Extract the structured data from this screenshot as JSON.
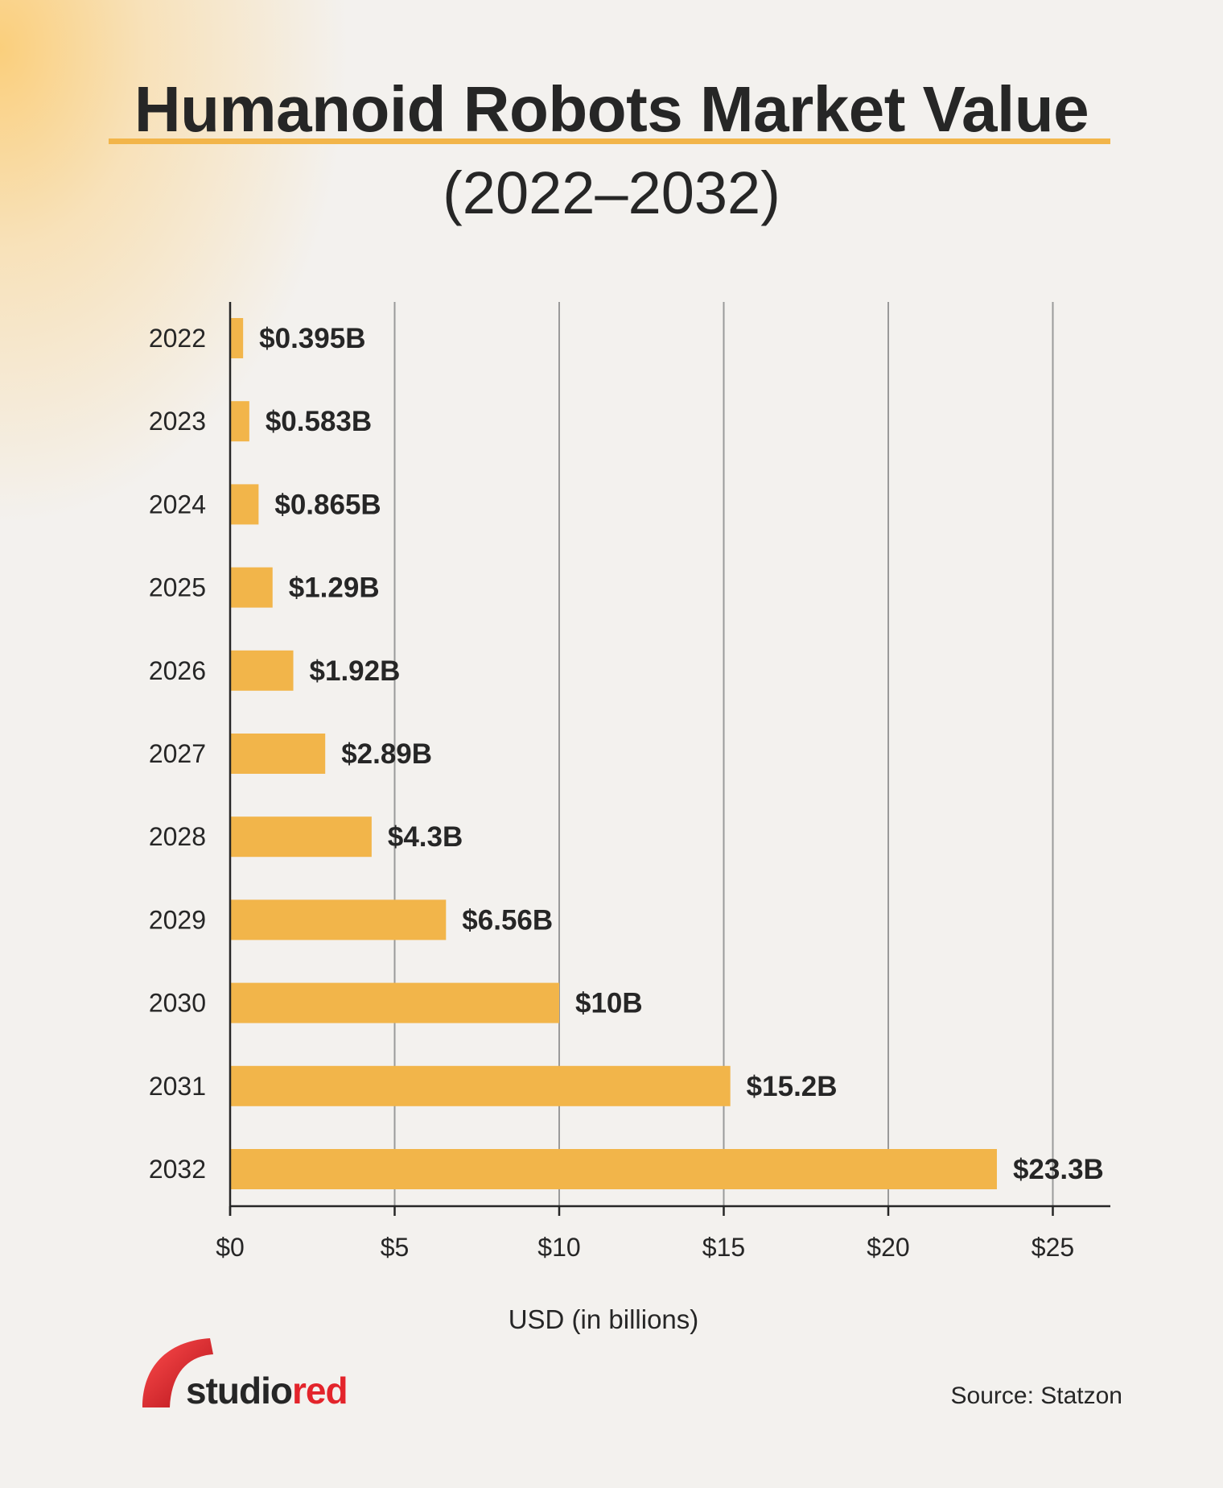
{
  "title": "Humanoid Robots Market Value",
  "subtitle": "(2022–2032)",
  "source": "Source: Statzon",
  "brand": {
    "name_part1": "studio",
    "name_part2": "red",
    "color_text": "#262626",
    "color_accent": "#e3242b"
  },
  "colors": {
    "bar": "#f2b54a",
    "title_underline": "#f2b54a",
    "grid": "#9a9a9a",
    "axis": "#262626",
    "background": "#f3f1ee"
  },
  "chart_data": {
    "type": "bar",
    "orientation": "horizontal",
    "categories": [
      "2022",
      "2023",
      "2024",
      "2025",
      "2026",
      "2027",
      "2028",
      "2029",
      "2030",
      "2031",
      "2032"
    ],
    "values": [
      0.395,
      0.583,
      0.865,
      1.29,
      1.92,
      2.89,
      4.3,
      6.56,
      10,
      15.2,
      23.3
    ],
    "data_labels": [
      "$0.395B",
      "$0.583B",
      "$0.865B",
      "$1.29B",
      "$1.92B",
      "$2.89B",
      "$4.3B",
      "$6.56B",
      "$10B",
      "$15.2B",
      "$23.3B"
    ],
    "x_ticks": [
      0,
      5,
      10,
      15,
      20,
      25
    ],
    "x_tick_labels": [
      "$0",
      "$5",
      "$10",
      "$15",
      "$20",
      "$25"
    ],
    "xlabel": "USD (in billions)",
    "ylabel": "",
    "xlim": [
      0,
      26.7
    ],
    "grid": "vertical"
  }
}
